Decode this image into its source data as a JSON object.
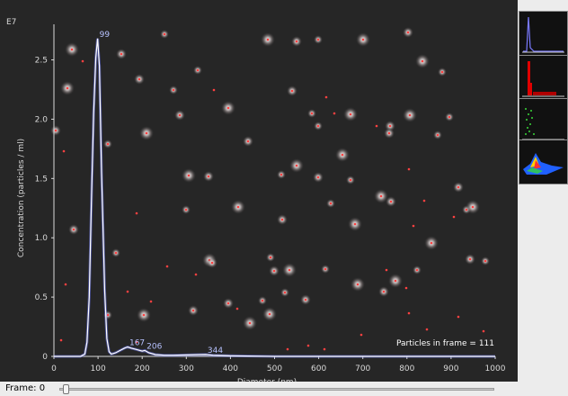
{
  "plot": {
    "scale_label": "E7",
    "particles_label": "Particles in frame = 111"
  },
  "chart_data": {
    "type": "line",
    "xlabel": "Diameter (nm)",
    "ylabel": "Concentration (particles / ml)",
    "x_ticks": [
      "0",
      "100",
      "200",
      "300",
      "400",
      "500",
      "600",
      "700",
      "800",
      "900",
      "1000"
    ],
    "y_ticks": [
      "0",
      "0.5",
      "1.0",
      "1.5",
      "2.0",
      "2.5"
    ],
    "xlim": [
      0,
      1000
    ],
    "ylim": [
      0,
      2.8
    ],
    "y_scale_exponent": "E7",
    "series": [
      {
        "color": "#b7c2ff",
        "x": [
          0,
          60,
          70,
          75,
          80,
          85,
          90,
          95,
          99,
          103,
          108,
          115,
          120,
          125,
          130,
          140,
          150,
          160,
          167,
          175,
          185,
          195,
          200,
          206,
          215,
          230,
          250,
          270,
          300,
          330,
          344,
          360,
          400,
          500,
          600,
          700,
          800,
          900,
          1000
        ],
        "y": [
          0,
          0,
          0.02,
          0.12,
          0.5,
          1.3,
          2.05,
          2.52,
          2.68,
          2.45,
          1.55,
          0.55,
          0.15,
          0.04,
          0.02,
          0.03,
          0.05,
          0.07,
          0.08,
          0.07,
          0.06,
          0.05,
          0.045,
          0.05,
          0.03,
          0.015,
          0.01,
          0.01,
          0.012,
          0.015,
          0.016,
          0.01,
          0.005,
          0,
          0,
          0,
          0,
          0,
          0
        ]
      }
    ],
    "annotations": [
      {
        "label": "99",
        "x": 99,
        "y": 2.68
      },
      {
        "label": "167",
        "x": 167,
        "y": 0.08
      },
      {
        "label": "206",
        "x": 206,
        "y": 0.05
      },
      {
        "label": "344",
        "x": 344,
        "y": 0.016
      }
    ],
    "grid": false
  },
  "frame": {
    "label": "Frame: 0",
    "value": 0
  },
  "thumbnails": [
    {
      "name": "histogram-thumbnail",
      "color": "#5a5aff"
    },
    {
      "name": "intensity-thumbnail",
      "color": "#e00000"
    },
    {
      "name": "scatter-thumbnail",
      "color": "#2fa82f"
    },
    {
      "name": "3d-plot-thumbnail",
      "color": "#2060ff"
    }
  ],
  "colors": {
    "background": "#262626",
    "axis": "#d9d9d9",
    "curve": "#b7c2ff",
    "particle_marker": "#ff4040",
    "particle_glow": "#f0e6e6"
  }
}
